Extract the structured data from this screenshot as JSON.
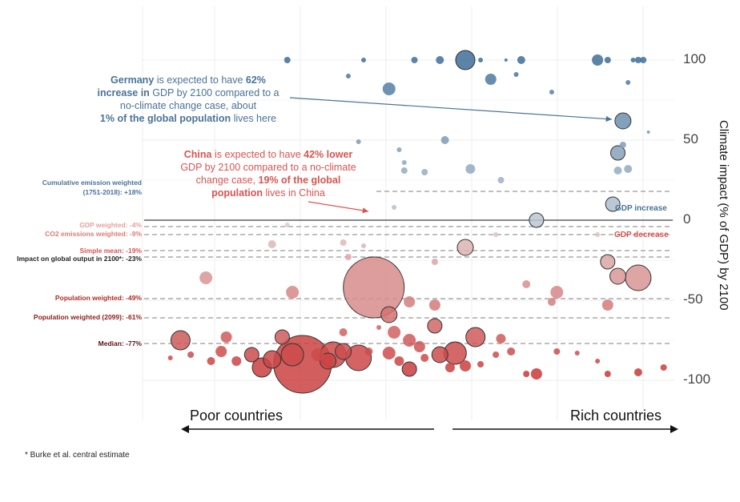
{
  "chart_data": {
    "type": "scatter",
    "ylabel": "Climate impact (% of GDP) by 2100",
    "ylim": [
      -125,
      135
    ],
    "yticks": [
      100,
      50,
      0,
      -50,
      -100
    ],
    "grid": true,
    "x_axis_labels": {
      "left": "Poor countries",
      "right": "Rich countries"
    },
    "zone_labels": {
      "increase": "GDP increase",
      "decrease": "GDP decrease"
    },
    "reference_lines": [
      {
        "label": "Cumulative emission weighted",
        "label2": "(1751-2018):  +18%",
        "value": 18,
        "color": "#4a7396"
      },
      {
        "label": "GDP weighted: -4%",
        "value": -4,
        "color": "#e6a09c"
      },
      {
        "label": "CO2 emissions weighted: -9%",
        "value": -9,
        "color": "#e07a72"
      },
      {
        "label": "Simple mean: -19%",
        "value": -19,
        "color": "#d9544f"
      },
      {
        "label": "Impact on global output in 2100*: -23%",
        "value": -23,
        "color": "#222222"
      },
      {
        "label": "Population weighted: -49%",
        "value": -49,
        "color": "#b22a22"
      },
      {
        "label": "Population weighted (2099): -61%",
        "value": -61,
        "color": "#8b1d18"
      },
      {
        "label": "Median: -77%",
        "value": -77,
        "color": "#5a1210"
      }
    ],
    "annotations": {
      "germany": {
        "country": "Germany",
        "t1": " is expected to have ",
        "pct": "62%",
        "t2": "increase in",
        "t3": " GDP by 2100 compared to a",
        "t4": "no-climate change case, about",
        "pop": "1% of the global population",
        "t5": " lives here",
        "x": 0.91,
        "y": 62
      },
      "china": {
        "country": "China",
        "t1": " is expected to have ",
        "pct": "42% lower",
        "t2": "GDP by 2100 compared to a no-climate",
        "t3": "change case, ",
        "pop1": "19% of the global",
        "pop2": "population",
        "t4": " lives in China",
        "x": 0.42,
        "y": -42
      }
    },
    "points": [
      {
        "x": 0.25,
        "y": 100,
        "s": 4
      },
      {
        "x": 0.4,
        "y": 100,
        "s": 3
      },
      {
        "x": 0.5,
        "y": 100,
        "s": 4
      },
      {
        "x": 0.55,
        "y": 100,
        "s": 5
      },
      {
        "x": 0.6,
        "y": 100,
        "s": 12
      },
      {
        "x": 0.63,
        "y": 100,
        "s": 3
      },
      {
        "x": 0.68,
        "y": 100,
        "s": 2
      },
      {
        "x": 0.71,
        "y": 100,
        "s": 5
      },
      {
        "x": 0.86,
        "y": 100,
        "s": 7
      },
      {
        "x": 0.88,
        "y": 100,
        "s": 4
      },
      {
        "x": 0.93,
        "y": 100,
        "s": 3
      },
      {
        "x": 0.94,
        "y": 100,
        "s": 4
      },
      {
        "x": 0.95,
        "y": 100,
        "s": 4
      },
      {
        "x": 0.37,
        "y": 90,
        "s": 3
      },
      {
        "x": 0.65,
        "y": 88,
        "s": 7
      },
      {
        "x": 0.7,
        "y": 91,
        "s": 3
      },
      {
        "x": 0.92,
        "y": 86,
        "s": 3
      },
      {
        "x": 0.45,
        "y": 82,
        "s": 8
      },
      {
        "x": 0.77,
        "y": 80,
        "s": 3
      },
      {
        "x": 0.91,
        "y": 62,
        "s": 10
      },
      {
        "x": 0.56,
        "y": 50,
        "s": 5
      },
      {
        "x": 0.39,
        "y": 49,
        "s": 3
      },
      {
        "x": 0.96,
        "y": 55,
        "s": 2
      },
      {
        "x": 0.47,
        "y": 44,
        "s": 3
      },
      {
        "x": 0.91,
        "y": 47,
        "s": 4
      },
      {
        "x": 0.9,
        "y": 42,
        "s": 9
      },
      {
        "x": 0.48,
        "y": 36,
        "s": 3
      },
      {
        "x": 0.48,
        "y": 31,
        "s": 4
      },
      {
        "x": 0.52,
        "y": 30,
        "s": 4
      },
      {
        "x": 0.61,
        "y": 32,
        "s": 6
      },
      {
        "x": 0.67,
        "y": 25,
        "s": 4
      },
      {
        "x": 0.9,
        "y": 31,
        "s": 5
      },
      {
        "x": 0.92,
        "y": 32,
        "s": 5
      },
      {
        "x": 0.46,
        "y": 8,
        "s": 3
      },
      {
        "x": 0.89,
        "y": 10,
        "s": 9
      },
      {
        "x": 0.74,
        "y": 0,
        "s": 9
      },
      {
        "x": 0.25,
        "y": -3,
        "s": 3
      },
      {
        "x": 0.66,
        "y": -9,
        "s": 3
      },
      {
        "x": 0.86,
        "y": -9,
        "s": 3
      },
      {
        "x": 0.22,
        "y": -15,
        "s": 5
      },
      {
        "x": 0.36,
        "y": -14,
        "s": 4
      },
      {
        "x": 0.4,
        "y": -16,
        "s": 3
      },
      {
        "x": 0.6,
        "y": -17,
        "s": 10
      },
      {
        "x": 0.37,
        "y": -23,
        "s": 4
      },
      {
        "x": 0.88,
        "y": -26,
        "s": 9
      },
      {
        "x": 0.54,
        "y": -26,
        "s": 4
      },
      {
        "x": 0.09,
        "y": -36,
        "s": 8
      },
      {
        "x": 0.42,
        "y": -42,
        "s": 38
      },
      {
        "x": 0.72,
        "y": -40,
        "s": 5
      },
      {
        "x": 0.78,
        "y": -45,
        "s": 8
      },
      {
        "x": 0.9,
        "y": -35,
        "s": 10
      },
      {
        "x": 0.94,
        "y": -36,
        "s": 16
      },
      {
        "x": 0.26,
        "y": -45,
        "s": 8
      },
      {
        "x": 0.49,
        "y": -51,
        "s": 7
      },
      {
        "x": 0.54,
        "y": -53,
        "s": 7
      },
      {
        "x": 0.77,
        "y": -51,
        "s": 5
      },
      {
        "x": 0.88,
        "y": -53,
        "s": 7
      },
      {
        "x": 0.45,
        "y": -59,
        "s": 10
      },
      {
        "x": 0.54,
        "y": -66,
        "s": 9
      },
      {
        "x": 0.62,
        "y": -73,
        "s": 12
      },
      {
        "x": 0.04,
        "y": -75,
        "s": 12
      },
      {
        "x": 0.13,
        "y": -73,
        "s": 7
      },
      {
        "x": 0.24,
        "y": -73,
        "s": 9
      },
      {
        "x": 0.36,
        "y": -70,
        "s": 5
      },
      {
        "x": 0.43,
        "y": -67,
        "s": 3
      },
      {
        "x": 0.46,
        "y": -70,
        "s": 8
      },
      {
        "x": 0.49,
        "y": -75,
        "s": 8
      },
      {
        "x": 0.51,
        "y": -79,
        "s": 7
      },
      {
        "x": 0.67,
        "y": -74,
        "s": 6
      },
      {
        "x": 0.02,
        "y": -86,
        "s": 3
      },
      {
        "x": 0.06,
        "y": -84,
        "s": 4
      },
      {
        "x": 0.12,
        "y": -82,
        "s": 7
      },
      {
        "x": 0.1,
        "y": -88,
        "s": 5
      },
      {
        "x": 0.18,
        "y": -84,
        "s": 9
      },
      {
        "x": 0.22,
        "y": -87,
        "s": 11
      },
      {
        "x": 0.28,
        "y": -90,
        "s": 36
      },
      {
        "x": 0.31,
        "y": -84,
        "s": 8
      },
      {
        "x": 0.33,
        "y": -88,
        "s": 10
      },
      {
        "x": 0.36,
        "y": -82,
        "s": 10
      },
      {
        "x": 0.39,
        "y": -86,
        "s": 16
      },
      {
        "x": 0.41,
        "y": -82,
        "s": 5
      },
      {
        "x": 0.45,
        "y": -83,
        "s": 8
      },
      {
        "x": 0.47,
        "y": -88,
        "s": 6
      },
      {
        "x": 0.49,
        "y": -93,
        "s": 9
      },
      {
        "x": 0.52,
        "y": -86,
        "s": 5
      },
      {
        "x": 0.55,
        "y": -84,
        "s": 10
      },
      {
        "x": 0.58,
        "y": -83,
        "s": 14
      },
      {
        "x": 0.57,
        "y": -92,
        "s": 6
      },
      {
        "x": 0.6,
        "y": -91,
        "s": 7
      },
      {
        "x": 0.63,
        "y": -90,
        "s": 4
      },
      {
        "x": 0.66,
        "y": -84,
        "s": 4
      },
      {
        "x": 0.69,
        "y": -82,
        "s": 5
      },
      {
        "x": 0.72,
        "y": -96,
        "s": 4
      },
      {
        "x": 0.74,
        "y": -96,
        "s": 7
      },
      {
        "x": 0.78,
        "y": -82,
        "s": 4
      },
      {
        "x": 0.82,
        "y": -83,
        "s": 3
      },
      {
        "x": 0.86,
        "y": -88,
        "s": 3
      },
      {
        "x": 0.88,
        "y": -96,
        "s": 4
      },
      {
        "x": 0.94,
        "y": -95,
        "s": 5
      },
      {
        "x": 0.99,
        "y": -92,
        "s": 4
      },
      {
        "x": 0.15,
        "y": -88,
        "s": 6
      },
      {
        "x": 0.2,
        "y": -92,
        "s": 12
      },
      {
        "x": 0.26,
        "y": -84,
        "s": 14
      },
      {
        "x": 0.34,
        "y": -84,
        "s": 16
      }
    ]
  },
  "footnote": "* Burke et al. central estimate"
}
